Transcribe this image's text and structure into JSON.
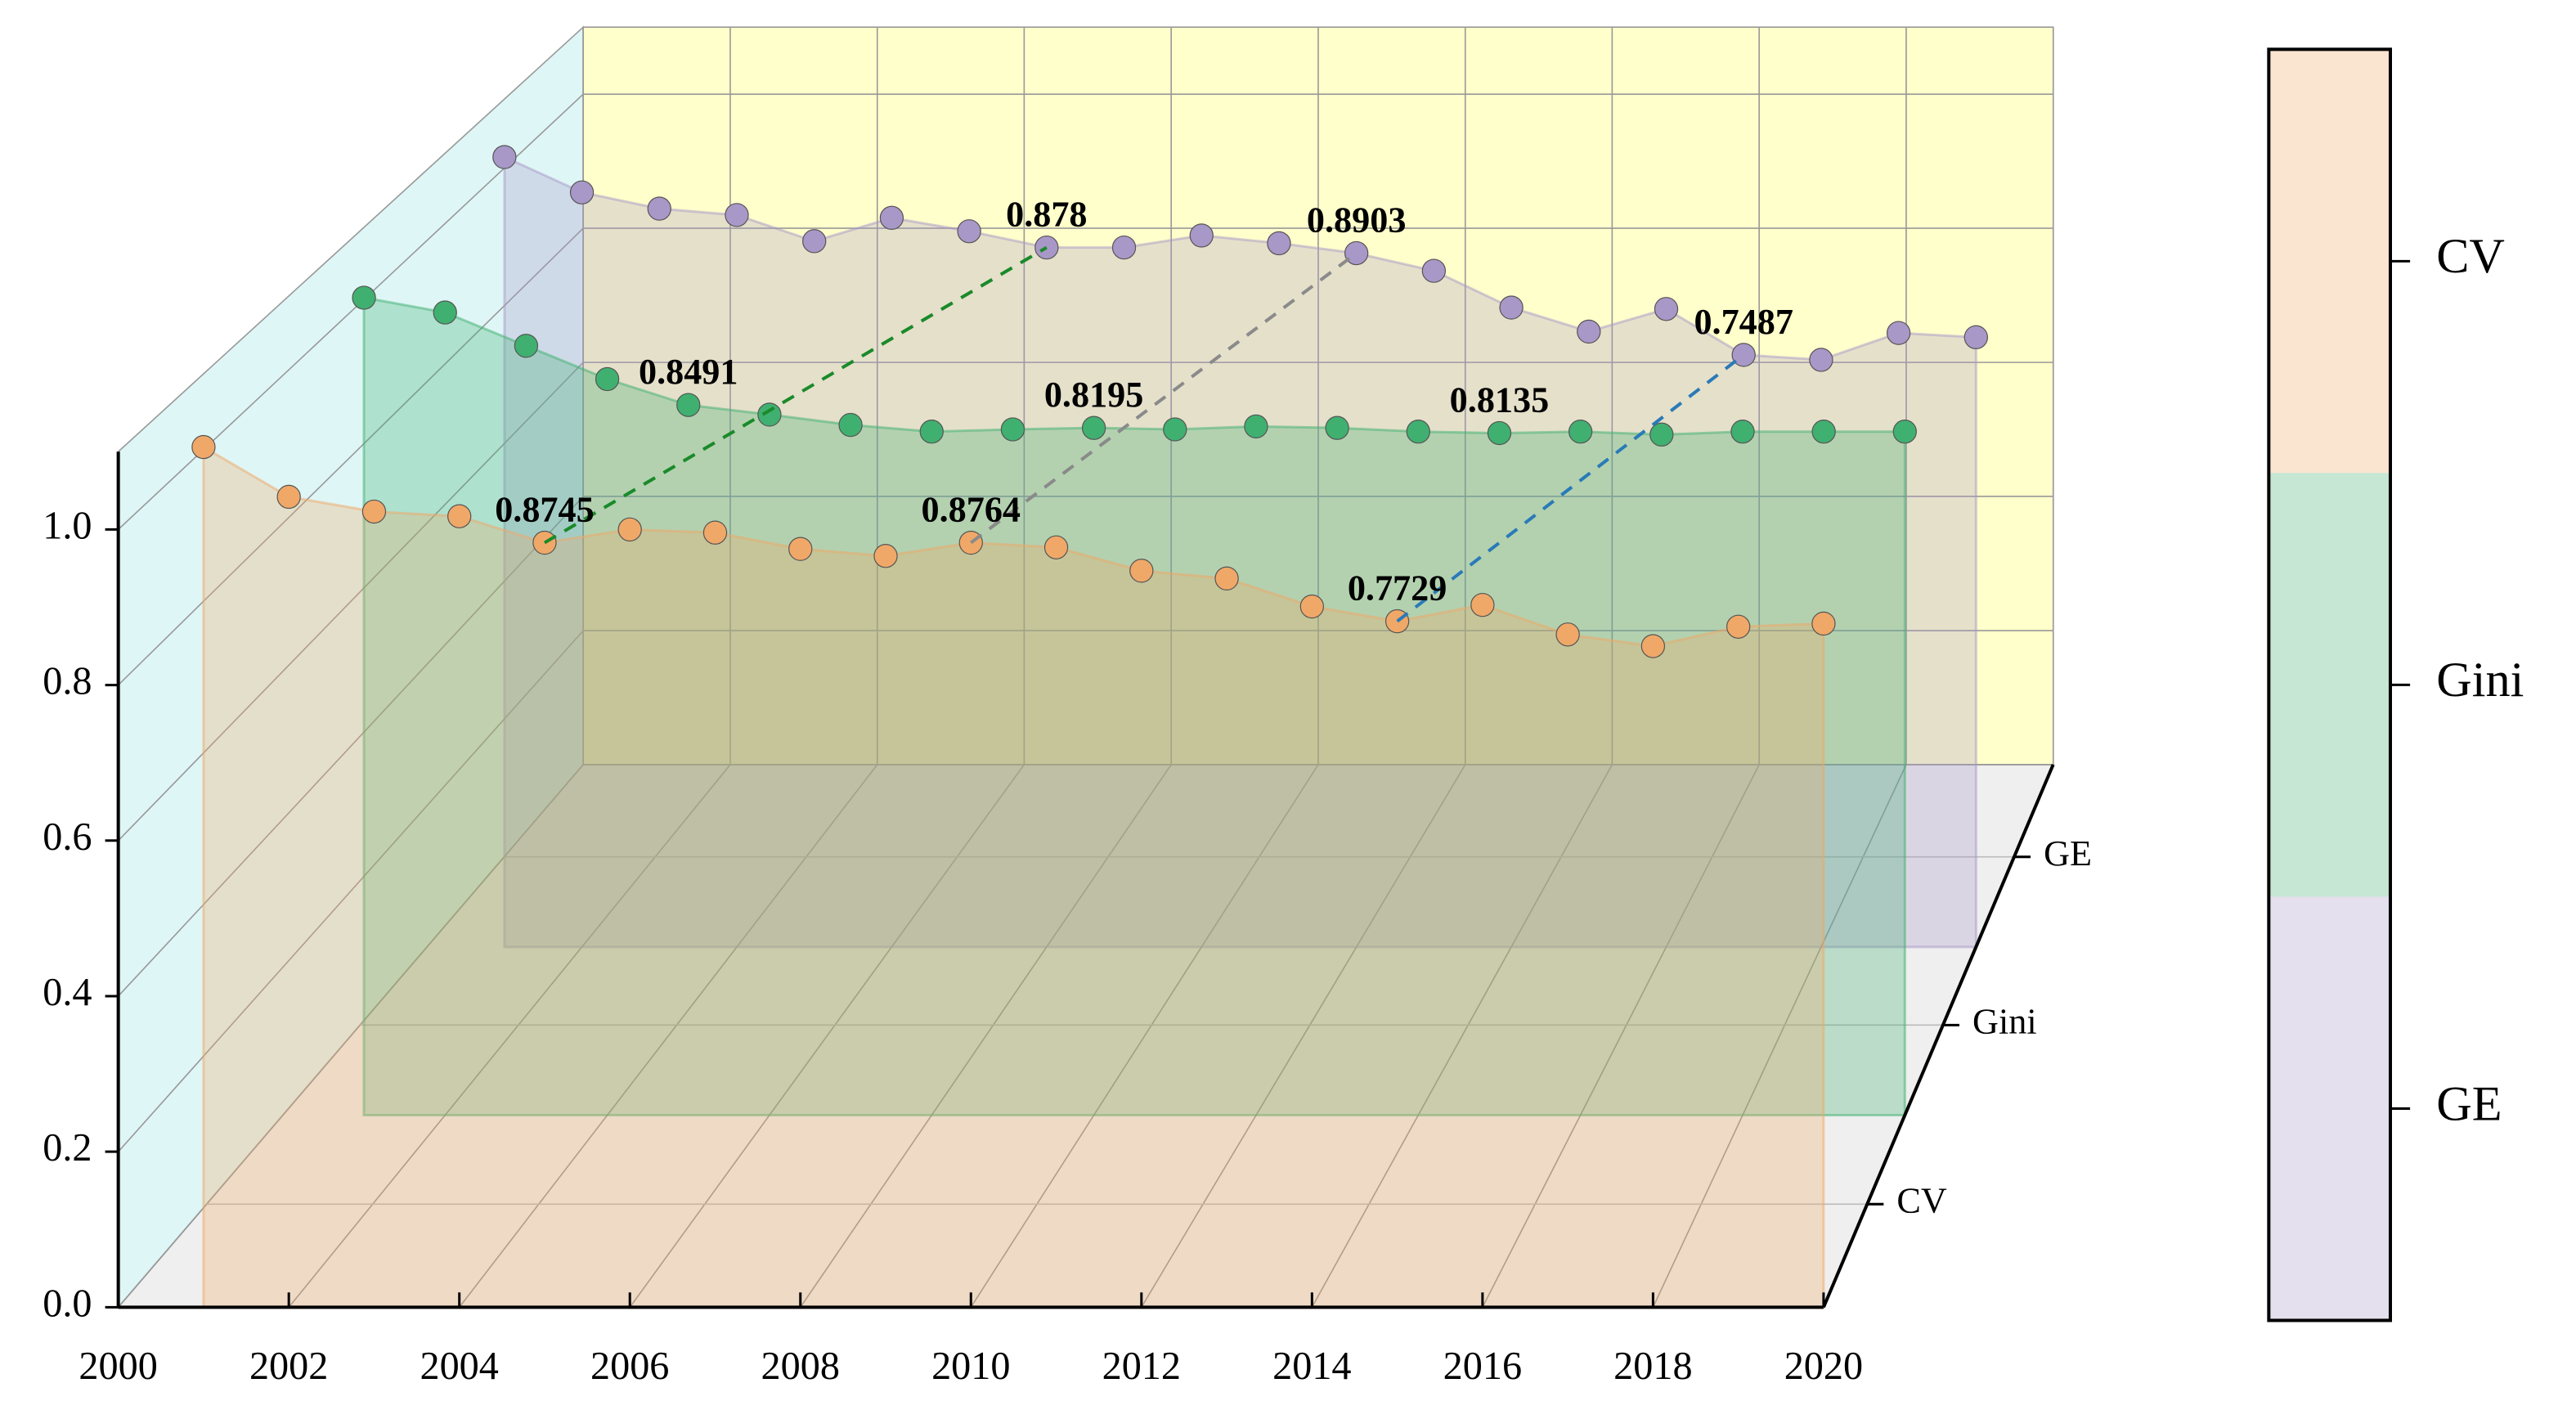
{
  "chart_data": {
    "type": "3d-area-line",
    "x": [
      2001,
      2002,
      2003,
      2004,
      2005,
      2006,
      2007,
      2008,
      2009,
      2010,
      2011,
      2012,
      2013,
      2014,
      2015,
      2016,
      2017,
      2018,
      2019,
      2020
    ],
    "xlim": [
      2000,
      2020
    ],
    "xticks": [
      2000,
      2002,
      2004,
      2006,
      2008,
      2010,
      2012,
      2014,
      2016,
      2018,
      2020
    ],
    "ylim": [
      0,
      1.1
    ],
    "yticks": [
      {
        "value": 0,
        "label": "0.0"
      },
      0.2,
      0.4,
      0.6,
      0.8,
      {
        "value": 1,
        "label": "1.0"
      }
    ],
    "z_categories": [
      "CV",
      "Gini",
      "GE"
    ],
    "grid": true,
    "series": [
      {
        "name": "CV",
        "color": "#f0a868",
        "values": [
          1.106,
          1.042,
          1.023,
          1.017,
          0.983,
          1.0,
          0.996,
          0.975,
          0.966,
          0.983,
          0.977,
          0.947,
          0.937,
          0.901,
          0.882,
          0.903,
          0.865,
          0.85,
          0.875,
          0.879
        ]
      },
      {
        "name": "Gini",
        "color": "#40b070",
        "values": [
          1.105,
          1.085,
          1.04,
          0.995,
          0.96,
          0.947,
          0.933,
          0.924,
          0.927,
          0.929,
          0.927,
          0.931,
          0.929,
          0.924,
          0.922,
          0.924,
          0.92,
          0.924,
          0.924,
          0.924
        ]
      },
      {
        "name": "GE",
        "color": "#a898c8",
        "values": [
          1.118,
          1.068,
          1.045,
          1.036,
          0.999,
          1.032,
          1.013,
          0.99,
          0.99,
          1.007,
          0.996,
          0.982,
          0.957,
          0.905,
          0.871,
          0.903,
          0.838,
          0.831,
          0.869,
          0.863
        ]
      }
    ],
    "annotations": [
      {
        "labels": [
          "0.8745",
          "0.8491",
          "0.878"
        ],
        "color": "#1a8a2a"
      },
      {
        "labels": [
          "0.8764",
          "0.8195",
          "0.8903"
        ],
        "color": "#8a8a8a"
      },
      {
        "labels": [
          "0.7729",
          "0.8135",
          "0.7487"
        ],
        "color": "#2a7ab8"
      }
    ]
  }
}
